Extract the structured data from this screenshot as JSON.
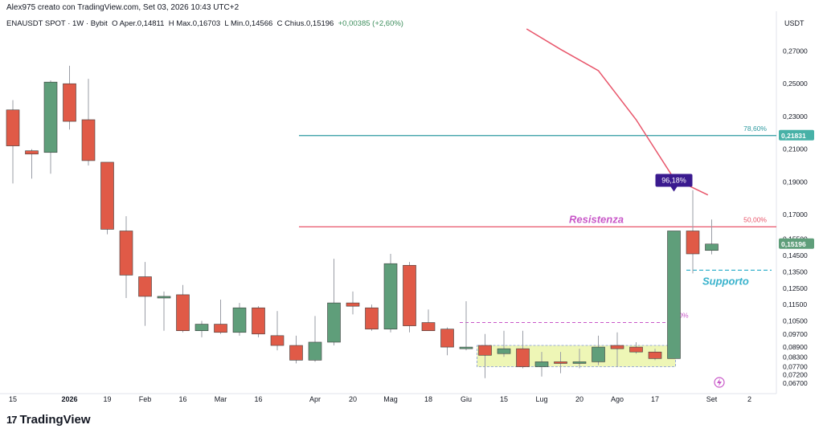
{
  "header": {
    "credit": "Alex975 creato con TradingView.com, Set 03, 2026 10:43 UTC+2",
    "legend_symbol": "ENAUSDT SPOT · 1W · Bybit",
    "legend_open": "O Aper.0,14811",
    "legend_high": "H Max.0,16703",
    "legend_low": "L Min.0,14566",
    "legend_close": "C Chius.0,15196",
    "legend_change": "+0,00385 (+2,60%)"
  },
  "brand": {
    "logo": "17",
    "name": "TradingView"
  },
  "colors": {
    "up": "#5f9e7a",
    "down": "#e05a47",
    "resistance": "#e8556a",
    "fib": "#2e9aa0",
    "support": "#38b2cc",
    "zone": "#eef6b6",
    "badge": "#3a1a8f"
  },
  "chart_data": {
    "type": "candlestick",
    "y_axis_title": "USDT",
    "ylim": [
      0.0635,
      0.2835
    ],
    "y_ticks": [
      "0,27000",
      "0,25000",
      "0,23000",
      "0,21000",
      "0,19000",
      "0,17000",
      "0,15500",
      "0,14500",
      "0,13500",
      "0,12500",
      "0,11500",
      "0,10500",
      "0,09700",
      "0,08900",
      "0,08300",
      "0,07700",
      "0,07200",
      "0,06700"
    ],
    "x_ticks": [
      "15",
      "2026",
      "19",
      "Feb",
      "16",
      "Mar",
      "16",
      "Apr",
      "20",
      "Mag",
      "18",
      "Giu",
      "15",
      "Lug",
      "20",
      "Ago",
      "17",
      "Set",
      "2"
    ],
    "x_tick_index": [
      0,
      3,
      5,
      7,
      9,
      11,
      13,
      16,
      18,
      20,
      22,
      24,
      26,
      28,
      30,
      32,
      34,
      37,
      39
    ],
    "candles": [
      {
        "o": 0.234,
        "h": 0.24,
        "l": 0.189,
        "c": 0.212
      },
      {
        "o": 0.209,
        "h": 0.21,
        "l": 0.192,
        "c": 0.207
      },
      {
        "o": 0.208,
        "h": 0.252,
        "l": 0.195,
        "c": 0.251
      },
      {
        "o": 0.25,
        "h": 0.261,
        "l": 0.222,
        "c": 0.227
      },
      {
        "o": 0.228,
        "h": 0.253,
        "l": 0.2,
        "c": 0.203
      },
      {
        "o": 0.202,
        "h": 0.202,
        "l": 0.158,
        "c": 0.161
      },
      {
        "o": 0.16,
        "h": 0.169,
        "l": 0.119,
        "c": 0.133
      },
      {
        "o": 0.132,
        "h": 0.141,
        "l": 0.102,
        "c": 0.12
      },
      {
        "o": 0.119,
        "h": 0.123,
        "l": 0.099,
        "c": 0.12
      },
      {
        "o": 0.121,
        "h": 0.127,
        "l": 0.098,
        "c": 0.099
      },
      {
        "o": 0.099,
        "h": 0.105,
        "l": 0.095,
        "c": 0.103
      },
      {
        "o": 0.103,
        "h": 0.118,
        "l": 0.097,
        "c": 0.098
      },
      {
        "o": 0.098,
        "h": 0.116,
        "l": 0.096,
        "c": 0.113
      },
      {
        "o": 0.113,
        "h": 0.114,
        "l": 0.095,
        "c": 0.097
      },
      {
        "o": 0.096,
        "h": 0.111,
        "l": 0.087,
        "c": 0.09
      },
      {
        "o": 0.09,
        "h": 0.096,
        "l": 0.079,
        "c": 0.081
      },
      {
        "o": 0.081,
        "h": 0.108,
        "l": 0.08,
        "c": 0.092
      },
      {
        "o": 0.092,
        "h": 0.143,
        "l": 0.09,
        "c": 0.116
      },
      {
        "o": 0.116,
        "h": 0.123,
        "l": 0.109,
        "c": 0.114
      },
      {
        "o": 0.113,
        "h": 0.115,
        "l": 0.099,
        "c": 0.1
      },
      {
        "o": 0.1,
        "h": 0.146,
        "l": 0.098,
        "c": 0.14
      },
      {
        "o": 0.139,
        "h": 0.141,
        "l": 0.098,
        "c": 0.102
      },
      {
        "o": 0.104,
        "h": 0.112,
        "l": 0.099,
        "c": 0.099
      },
      {
        "o": 0.1,
        "h": 0.101,
        "l": 0.084,
        "c": 0.089
      },
      {
        "o": 0.088,
        "h": 0.117,
        "l": 0.087,
        "c": 0.089
      },
      {
        "o": 0.09,
        "h": 0.097,
        "l": 0.07,
        "c": 0.084
      },
      {
        "o": 0.085,
        "h": 0.099,
        "l": 0.083,
        "c": 0.088
      },
      {
        "o": 0.088,
        "h": 0.099,
        "l": 0.076,
        "c": 0.077
      },
      {
        "o": 0.077,
        "h": 0.086,
        "l": 0.071,
        "c": 0.08
      },
      {
        "o": 0.08,
        "h": 0.086,
        "l": 0.073,
        "c": 0.079
      },
      {
        "o": 0.08,
        "h": 0.088,
        "l": 0.076,
        "c": 0.08
      },
      {
        "o": 0.08,
        "h": 0.096,
        "l": 0.078,
        "c": 0.089
      },
      {
        "o": 0.09,
        "h": 0.098,
        "l": 0.077,
        "c": 0.088
      },
      {
        "o": 0.089,
        "h": 0.092,
        "l": 0.085,
        "c": 0.086
      },
      {
        "o": 0.086,
        "h": 0.088,
        "l": 0.081,
        "c": 0.082
      },
      {
        "o": 0.082,
        "h": 0.16,
        "l": 0.082,
        "c": 0.16
      },
      {
        "o": 0.16,
        "h": 0.185,
        "l": 0.134,
        "c": 0.146
      },
      {
        "o": 0.1481,
        "h": 0.167,
        "l": 0.1457,
        "c": 0.152
      }
    ],
    "current_price": "0,15196",
    "resistance": {
      "label": "Resistenza",
      "value": 0.1625,
      "pct": "50,00%"
    },
    "fib_top": {
      "value": 0.2183,
      "pct": "78,60%",
      "tag": "0,21831"
    },
    "fib_zero": {
      "value": 0.104,
      "pct": "0,00%"
    },
    "support": {
      "label": "Supporto",
      "value": 0.136
    },
    "zone": {
      "from": 0.077,
      "to": 0.09
    },
    "badge": "96,18%",
    "ma_line": [
      [
        27.2,
        0.2835
      ],
      [
        29,
        0.271
      ],
      [
        31,
        0.258
      ],
      [
        33,
        0.228
      ],
      [
        35,
        0.192
      ],
      [
        36.8,
        0.182
      ]
    ]
  }
}
